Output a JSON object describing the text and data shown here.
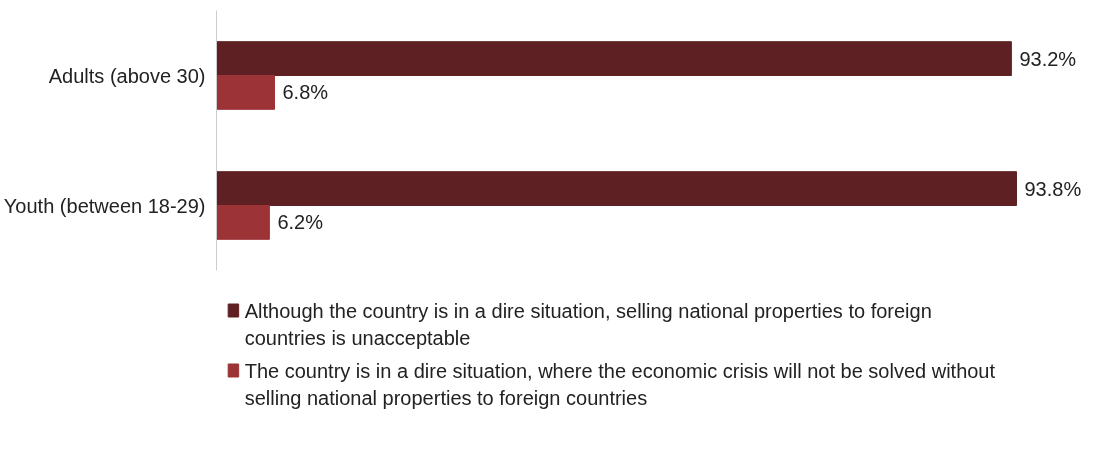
{
  "chart_data": {
    "type": "bar",
    "orientation": "horizontal",
    "categories": [
      "Adults (above 30)",
      "Youth (between 18-29)"
    ],
    "series": [
      {
        "name": "Although the country is in a dire situation, selling national properties to foreign countries is unacceptable",
        "color": "#5e2022",
        "values": [
          93.2,
          93.8
        ],
        "value_labels": [
          "93.2%",
          "93.8%"
        ]
      },
      {
        "name": "The country is in a dire situation, where the economic crisis will not be solved without selling national properties to foreign countries",
        "color": "#9c3337",
        "values": [
          6.8,
          6.2
        ],
        "value_labels": [
          "6.8%",
          "6.2%"
        ]
      }
    ],
    "legend": "bottom",
    "grid": false,
    "tick_labels": "y"
  }
}
